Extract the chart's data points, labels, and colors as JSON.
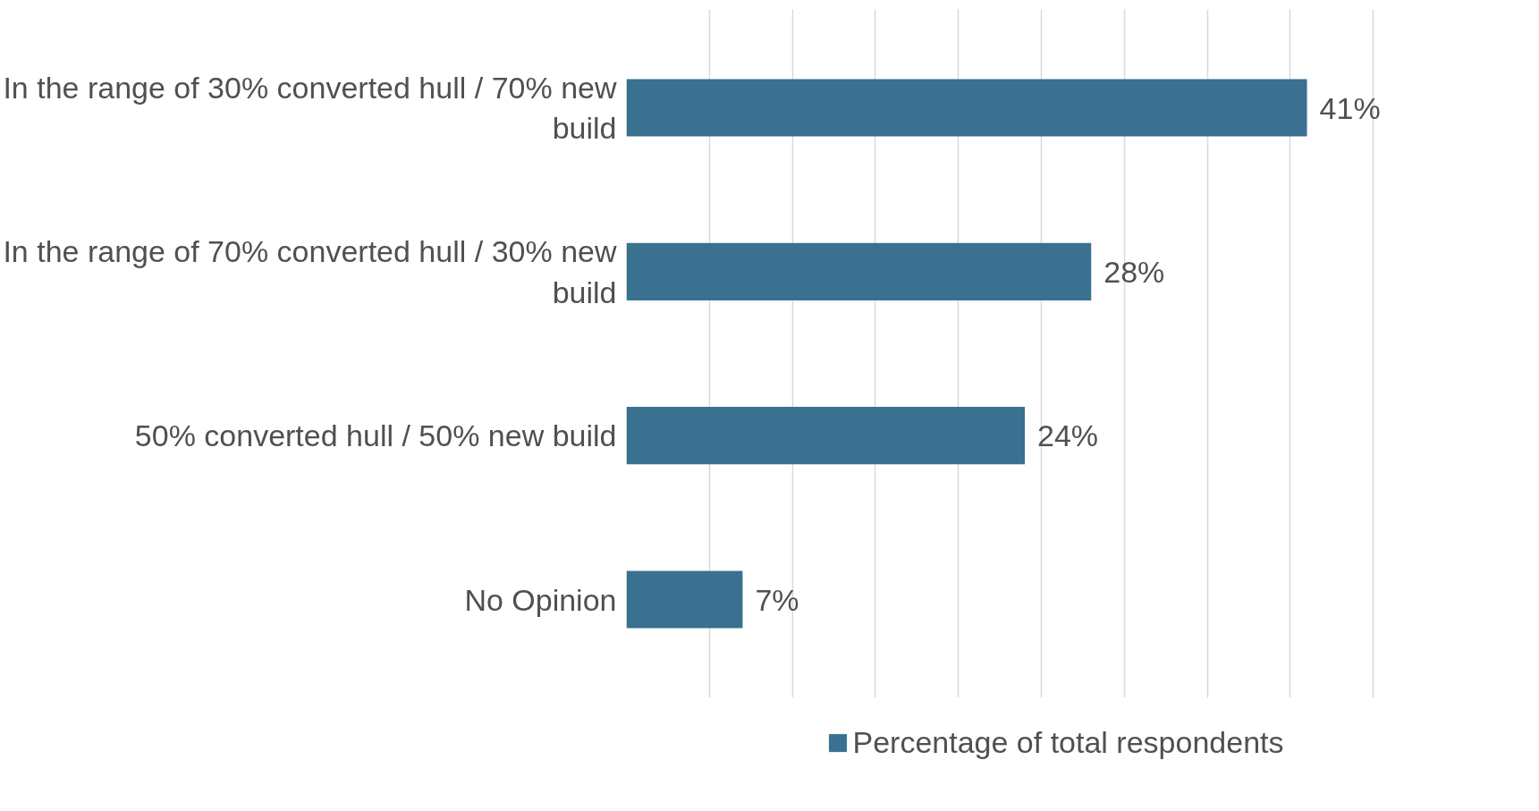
{
  "chart_data": {
    "type": "bar",
    "orientation": "horizontal",
    "categories": [
      "In the range of 30% converted hull / 70% new build",
      "In the range of 70% converted hull / 30% new build",
      "50% converted hull / 50% new build",
      "No Opinion"
    ],
    "series": [
      {
        "name": "Percentage of total respondents",
        "color": "#3a7090",
        "values": [
          41,
          28,
          24,
          7
        ],
        "value_labels": [
          "41%",
          "28%",
          "24%",
          "7%"
        ]
      }
    ],
    "tick_labels": "y",
    "grid": "x",
    "legend": "bottom"
  }
}
